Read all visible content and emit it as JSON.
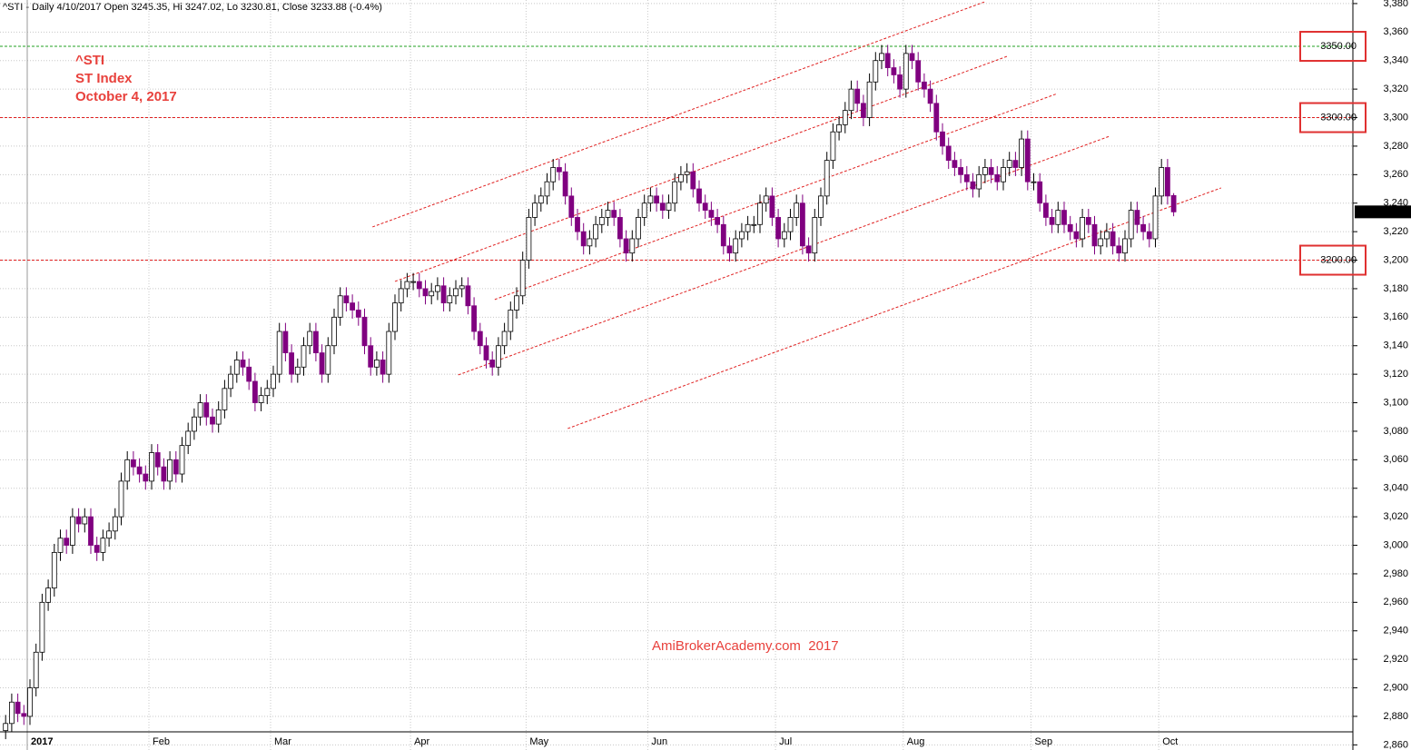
{
  "chart_data": {
    "type": "candlestick",
    "title": "^STI - Daily 4/10/2017 Open 3245.35, Hi 3247.02, Lo 3230.81, Close 3233.88 (-0.4%)",
    "annotations": [
      "^STI",
      "ST Index",
      "October 4, 2017"
    ],
    "watermark": "AmiBrokerAcademy.com  2017",
    "up_color": "#ffffff",
    "down_color": "#800080",
    "grid": true,
    "ylim": [
      2856.4,
      3382.5
    ],
    "yticks": [
      {
        "value": 2860,
        "label": "2,860"
      },
      {
        "value": 2880,
        "label": "2,880"
      },
      {
        "value": 2900,
        "label": "2,900"
      },
      {
        "value": 2920,
        "label": "2,920"
      },
      {
        "value": 2940,
        "label": "2,940"
      },
      {
        "value": 2960,
        "label": "2,960"
      },
      {
        "value": 2980,
        "label": "2,980"
      },
      {
        "value": 3000,
        "label": "3,000"
      },
      {
        "value": 3020,
        "label": "3,020"
      },
      {
        "value": 3040,
        "label": "3,040"
      },
      {
        "value": 3060,
        "label": "3,060"
      },
      {
        "value": 3080,
        "label": "3,080"
      },
      {
        "value": 3100,
        "label": "3,100"
      },
      {
        "value": 3120,
        "label": "3,120"
      },
      {
        "value": 3140,
        "label": "3,140"
      },
      {
        "value": 3160,
        "label": "3,160"
      },
      {
        "value": 3180,
        "label": "3,180"
      },
      {
        "value": 3200,
        "label": "3,200"
      },
      {
        "value": 3220,
        "label": "3,220"
      },
      {
        "value": 3240,
        "label": "3,240"
      },
      {
        "value": 3260,
        "label": "3,260"
      },
      {
        "value": 3280,
        "label": "3,280"
      },
      {
        "value": 3300,
        "label": "3,300"
      },
      {
        "value": 3320,
        "label": "3,320"
      },
      {
        "value": 3340,
        "label": "3,340"
      },
      {
        "value": 3360,
        "label": "3,360"
      },
      {
        "value": 3380,
        "label": "3,380"
      }
    ],
    "levels": [
      {
        "value": 3350,
        "label": "3350.00",
        "color": "#22a022"
      },
      {
        "value": 3300,
        "label": "3300.00",
        "color": "#e02020"
      },
      {
        "value": 3200,
        "label": "3200.00",
        "color": "#e02020"
      }
    ],
    "last_price": {
      "value": 3233.88,
      "label": "3,233.88"
    },
    "trend_lines": [
      {
        "start": [
          60.3,
          3223.3
        ],
        "end": [
          161.0,
          3381.3
        ]
      },
      {
        "start": [
          64.0,
          3185.1
        ],
        "end": [
          164.7,
          3343.1
        ]
      },
      {
        "start": [
          80.4,
          3172.4
        ],
        "end": [
          172.9,
          3316.9
        ]
      },
      {
        "start": [
          74.4,
          3119.5
        ],
        "end": [
          181.5,
          3287.0
        ]
      },
      {
        "start": [
          92.4,
          3081.9
        ],
        "end": [
          199.8,
          3250.7
        ]
      }
    ],
    "categories": [
      null,
      null,
      null,
      null,
      "2017",
      null,
      null,
      null,
      null,
      null,
      null,
      null,
      null,
      null,
      null,
      null,
      null,
      null,
      null,
      null,
      null,
      null,
      null,
      null,
      "Feb",
      null,
      null,
      null,
      null,
      null,
      null,
      null,
      null,
      null,
      null,
      null,
      null,
      null,
      null,
      null,
      null,
      null,
      null,
      null,
      "Mar",
      null,
      null,
      null,
      null,
      null,
      null,
      null,
      null,
      null,
      null,
      null,
      null,
      null,
      null,
      null,
      null,
      null,
      null,
      null,
      null,
      null,
      null,
      "Apr",
      null,
      null,
      null,
      null,
      null,
      null,
      null,
      null,
      null,
      null,
      null,
      null,
      null,
      null,
      null,
      null,
      null,
      null,
      "May",
      null,
      null,
      null,
      null,
      null,
      null,
      null,
      null,
      null,
      null,
      null,
      null,
      null,
      null,
      null,
      null,
      null,
      null,
      null,
      "Jun",
      null,
      null,
      null,
      null,
      null,
      null,
      null,
      null,
      null,
      null,
      null,
      null,
      null,
      null,
      null,
      null,
      null,
      null,
      null,
      null,
      "Jul",
      null,
      null,
      null,
      null,
      null,
      null,
      null,
      null,
      null,
      null,
      null,
      null,
      null,
      null,
      null,
      null,
      null,
      null,
      null,
      null,
      "Aug",
      null,
      null,
      null,
      null,
      null,
      null,
      null,
      null,
      null,
      null,
      null,
      null,
      null,
      null,
      null,
      null,
      null,
      null,
      null,
      null,
      "Sep",
      null,
      null,
      null,
      null,
      null,
      null,
      null,
      null,
      null,
      null,
      null,
      null,
      null,
      null,
      null,
      null,
      null,
      null,
      null,
      null,
      "Oct",
      null,
      null
    ],
    "open": [
      2870,
      2875,
      2890,
      2882,
      2880,
      2900,
      2925,
      2960,
      2970,
      2995,
      3005,
      3000,
      3020,
      3015,
      3020,
      3000,
      2995,
      3005,
      3010,
      3020,
      3045,
      3060,
      3055,
      3050,
      3045,
      3065,
      3055,
      3045,
      3060,
      3050,
      3070,
      3080,
      3090,
      3100,
      3090,
      3085,
      3095,
      3110,
      3120,
      3130,
      3125,
      3115,
      3100,
      3105,
      3110,
      3120,
      3150,
      3135,
      3120,
      3125,
      3140,
      3150,
      3135,
      3120,
      3140,
      3160,
      3175,
      3170,
      3165,
      3160,
      3140,
      3125,
      3130,
      3120,
      3150,
      3170,
      3180,
      3185,
      3185,
      3180,
      3175,
      3178,
      3182,
      3170,
      3175,
      3180,
      3182,
      3168,
      3150,
      3140,
      3130,
      3125,
      3140,
      3150,
      3165,
      3175,
      3200,
      3230,
      3240,
      3245,
      3255,
      3265,
      3262,
      3245,
      3230,
      3220,
      3210,
      3215,
      3225,
      3230,
      3235,
      3230,
      3215,
      3205,
      3215,
      3230,
      3240,
      3245,
      3240,
      3235,
      3240,
      3255,
      3260,
      3262,
      3250,
      3240,
      3235,
      3230,
      3225,
      3210,
      3205,
      3215,
      3220,
      3225,
      3225,
      3240,
      3245,
      3230,
      3215,
      3220,
      3230,
      3240,
      3210,
      3205,
      3230,
      3245,
      3270,
      3290,
      3295,
      3305,
      3320,
      3310,
      3300,
      3325,
      3340,
      3345,
      3335,
      3330,
      3320,
      3345,
      3340,
      3325,
      3320,
      3310,
      3290,
      3280,
      3270,
      3265,
      3260,
      3255,
      3250,
      3260,
      3265,
      3260,
      3255,
      3265,
      3270,
      3265,
      3285,
      3255,
      3255,
      3240,
      3230,
      3225,
      3235,
      3225,
      3220,
      3215,
      3230,
      3225,
      3210,
      3215,
      3220,
      3210,
      3205,
      3215,
      3235,
      3225,
      3220,
      3215,
      3245,
      3265,
      3245.35
    ],
    "high": [
      2881,
      2896,
      2896,
      2888,
      2906,
      2931,
      2966,
      2976,
      3001,
      3011,
      3011,
      3026,
      3026,
      3026,
      3026,
      3006,
      3011,
      3016,
      3026,
      3051,
      3066,
      3066,
      3061,
      3056,
      3071,
      3071,
      3061,
      3066,
      3066,
      3076,
      3086,
      3096,
      3106,
      3106,
      3096,
      3101,
      3116,
      3126,
      3136,
      3136,
      3131,
      3121,
      3111,
      3116,
      3126,
      3156,
      3156,
      3141,
      3131,
      3146,
      3156,
      3156,
      3141,
      3146,
      3166,
      3181,
      3181,
      3176,
      3171,
      3166,
      3146,
      3136,
      3136,
      3156,
      3176,
      3186,
      3191,
      3191,
      3191,
      3186,
      3184,
      3188,
      3188,
      3181,
      3186,
      3188,
      3188,
      3174,
      3156,
      3146,
      3136,
      3146,
      3156,
      3171,
      3181,
      3206,
      3236,
      3246,
      3251,
      3261,
      3271,
      3271,
      3268,
      3251,
      3236,
      3226,
      3221,
      3231,
      3236,
      3241,
      3241,
      3236,
      3221,
      3221,
      3236,
      3246,
      3251,
      3251,
      3246,
      3246,
      3261,
      3266,
      3268,
      3268,
      3256,
      3246,
      3241,
      3236,
      3231,
      3216,
      3221,
      3226,
      3231,
      3231,
      3246,
      3251,
      3251,
      3236,
      3226,
      3236,
      3246,
      3246,
      3216,
      3236,
      3251,
      3276,
      3296,
      3301,
      3311,
      3326,
      3326,
      3316,
      3331,
      3346,
      3351,
      3351,
      3341,
      3336,
      3351,
      3351,
      3346,
      3331,
      3326,
      3316,
      3296,
      3286,
      3276,
      3271,
      3266,
      3261,
      3266,
      3271,
      3271,
      3266,
      3271,
      3276,
      3276,
      3291,
      3291,
      3261,
      3261,
      3246,
      3236,
      3241,
      3241,
      3231,
      3226,
      3236,
      3236,
      3231,
      3221,
      3226,
      3226,
      3216,
      3221,
      3241,
      3241,
      3231,
      3226,
      3251,
      3271,
      3271,
      3247.02
    ],
    "low": [
      2864,
      2869,
      2876,
      2874,
      2874,
      2894,
      2919,
      2954,
      2964,
      2989,
      2994,
      2994,
      3009,
      3009,
      2994,
      2989,
      2989,
      2999,
      3004,
      3014,
      3039,
      3049,
      3044,
      3039,
      3039,
      3049,
      3039,
      3039,
      3044,
      3044,
      3064,
      3074,
      3084,
      3084,
      3079,
      3079,
      3089,
      3104,
      3114,
      3119,
      3109,
      3094,
      3094,
      3099,
      3104,
      3114,
      3129,
      3114,
      3114,
      3119,
      3134,
      3129,
      3114,
      3114,
      3134,
      3154,
      3164,
      3159,
      3154,
      3134,
      3119,
      3119,
      3114,
      3114,
      3144,
      3164,
      3174,
      3179,
      3174,
      3169,
      3169,
      3172,
      3164,
      3164,
      3169,
      3174,
      3162,
      3144,
      3134,
      3124,
      3119,
      3119,
      3134,
      3144,
      3159,
      3169,
      3194,
      3224,
      3234,
      3239,
      3249,
      3256,
      3239,
      3224,
      3214,
      3204,
      3204,
      3209,
      3219,
      3224,
      3224,
      3209,
      3199,
      3199,
      3209,
      3224,
      3234,
      3234,
      3229,
      3229,
      3234,
      3249,
      3254,
      3244,
      3234,
      3229,
      3224,
      3219,
      3204,
      3199,
      3199,
      3209,
      3214,
      3219,
      3219,
      3234,
      3224,
      3209,
      3209,
      3214,
      3224,
      3204,
      3199,
      3199,
      3224,
      3239,
      3264,
      3284,
      3289,
      3299,
      3304,
      3294,
      3294,
      3319,
      3334,
      3329,
      3324,
      3314,
      3314,
      3334,
      3319,
      3314,
      3304,
      3284,
      3274,
      3264,
      3259,
      3254,
      3249,
      3244,
      3244,
      3254,
      3254,
      3249,
      3249,
      3259,
      3259,
      3259,
      3249,
      3249,
      3234,
      3224,
      3219,
      3219,
      3219,
      3214,
      3209,
      3209,
      3219,
      3204,
      3204,
      3209,
      3204,
      3199,
      3199,
      3209,
      3219,
      3214,
      3209,
      3209,
      3239,
      3239,
      3230.81
    ],
    "close": [
      2875,
      2890,
      2882,
      2880,
      2900,
      2925,
      2960,
      2970,
      2995,
      3005,
      3000,
      3020,
      3015,
      3020,
      3000,
      2995,
      3005,
      3010,
      3020,
      3045,
      3060,
      3055,
      3050,
      3045,
      3065,
      3055,
      3045,
      3060,
      3050,
      3070,
      3080,
      3090,
      3100,
      3090,
      3085,
      3095,
      3110,
      3120,
      3130,
      3125,
      3115,
      3100,
      3105,
      3110,
      3120,
      3150,
      3135,
      3120,
      3125,
      3140,
      3150,
      3135,
      3120,
      3140,
      3160,
      3175,
      3170,
      3165,
      3160,
      3140,
      3125,
      3130,
      3120,
      3150,
      3170,
      3180,
      3185,
      3185,
      3180,
      3175,
      3178,
      3182,
      3170,
      3175,
      3180,
      3182,
      3168,
      3150,
      3140,
      3130,
      3125,
      3140,
      3150,
      3165,
      3175,
      3200,
      3230,
      3240,
      3245,
      3255,
      3265,
      3262,
      3245,
      3230,
      3220,
      3210,
      3215,
      3225,
      3230,
      3235,
      3230,
      3215,
      3205,
      3215,
      3230,
      3240,
      3245,
      3240,
      3235,
      3240,
      3255,
      3260,
      3262,
      3250,
      3240,
      3235,
      3230,
      3225,
      3210,
      3205,
      3215,
      3220,
      3225,
      3225,
      3240,
      3245,
      3230,
      3215,
      3220,
      3230,
      3240,
      3210,
      3205,
      3230,
      3245,
      3270,
      3290,
      3295,
      3305,
      3320,
      3310,
      3300,
      3325,
      3340,
      3345,
      3335,
      3330,
      3320,
      3345,
      3340,
      3325,
      3320,
      3310,
      3290,
      3280,
      3270,
      3265,
      3260,
      3255,
      3250,
      3260,
      3265,
      3260,
      3255,
      3265,
      3270,
      3265,
      3285,
      3255,
      3255,
      3240,
      3230,
      3225,
      3235,
      3225,
      3220,
      3215,
      3230,
      3225,
      3210,
      3215,
      3220,
      3210,
      3205,
      3215,
      3235,
      3225,
      3220,
      3215,
      3245,
      3265,
      3245,
      3233.88
    ]
  }
}
